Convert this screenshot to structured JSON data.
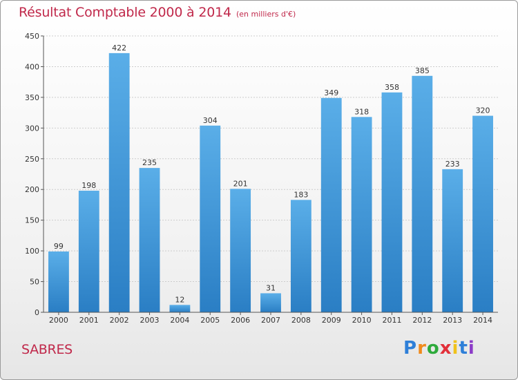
{
  "header": {
    "title": "Résultat Comptable 2000 à 2014",
    "subtitle": "(en milliers d'€)"
  },
  "footer": {
    "place": "SABRES",
    "logo_letters": [
      "P",
      "r",
      "o",
      "x",
      "i",
      "t",
      "i"
    ]
  },
  "chart_data": {
    "type": "bar",
    "title": "Résultat Comptable 2000 à 2014",
    "subtitle": "(en milliers d'€)",
    "categories": [
      "2000",
      "2001",
      "2002",
      "2003",
      "2004",
      "2005",
      "2006",
      "2007",
      "2008",
      "2009",
      "2010",
      "2011",
      "2012",
      "2013",
      "2014"
    ],
    "values": [
      99,
      198,
      422,
      235,
      12,
      304,
      201,
      31,
      183,
      349,
      318,
      358,
      385,
      233,
      320
    ],
    "ylim": [
      0,
      450
    ],
    "yticks": [
      0,
      50,
      100,
      150,
      200,
      250,
      300,
      350,
      400,
      450
    ],
    "grid": true,
    "bar_color_top": "#5aaee8",
    "bar_color_bottom": "#2a7ec4"
  }
}
